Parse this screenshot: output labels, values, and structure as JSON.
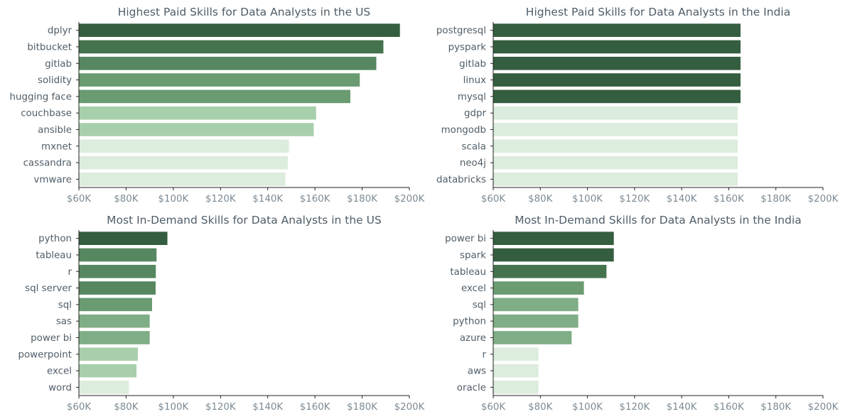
{
  "chart_data": [
    {
      "type": "bar",
      "orientation": "horizontal",
      "title": "Highest Paid Skills for Data Analysts in the US",
      "categories": [
        "dplyr",
        "bitbucket",
        "gitlab",
        "solidity",
        "hugging face",
        "couchbase",
        "ansible",
        "mxnet",
        "cassandra",
        "vmware"
      ],
      "values": [
        196000,
        189000,
        186000,
        179000,
        175000,
        160500,
        159500,
        149000,
        148500,
        147500
      ],
      "xlim": [
        60000,
        200000
      ],
      "xticks": [
        "$60K",
        "$80K",
        "$100K",
        "$120K",
        "$140K",
        "$160K",
        "$180K",
        "$200K"
      ]
    },
    {
      "type": "bar",
      "orientation": "horizontal",
      "title": "Highest Paid Skills for Data Analysts in the India",
      "categories": [
        "postgresql",
        "pyspark",
        "gitlab",
        "linux",
        "mysql",
        "gdpr",
        "mongodb",
        "scala",
        "neo4j",
        "databricks"
      ],
      "values": [
        165000,
        165000,
        165000,
        165000,
        165000,
        163800,
        163800,
        163800,
        163800,
        163800
      ],
      "xlim": [
        60000,
        200000
      ],
      "xticks": [
        "$60K",
        "$80K",
        "$100K",
        "$120K",
        "$140K",
        "$160K",
        "$180K",
        "$200K"
      ]
    },
    {
      "type": "bar",
      "orientation": "horizontal",
      "title": "Most In-Demand Skills for Data Analysts in the US",
      "categories": [
        "python",
        "tableau",
        "r",
        "sql server",
        "sql",
        "sas",
        "power bi",
        "powerpoint",
        "excel",
        "word"
      ],
      "values": [
        97500,
        92900,
        92600,
        92500,
        91000,
        90000,
        90000,
        85000,
        84400,
        81200
      ],
      "xlim": [
        60000,
        200000
      ],
      "xticks": [
        "$60K",
        "$80K",
        "$100K",
        "$120K",
        "$140K",
        "$160K",
        "$180K",
        "$200K"
      ]
    },
    {
      "type": "bar",
      "orientation": "horizontal",
      "title": "Most In-Demand Skills for Data Analysts in the India",
      "categories": [
        "power bi",
        "spark",
        "tableau",
        "excel",
        "sql",
        "python",
        "azure",
        "r",
        "aws",
        "oracle"
      ],
      "values": [
        111200,
        111200,
        108100,
        98500,
        96100,
        96100,
        93300,
        79200,
        79200,
        79200
      ],
      "xlim": [
        60000,
        200000
      ],
      "xticks": [
        "$60K",
        "$80K",
        "$100K",
        "$120K",
        "$140K",
        "$160K",
        "$180K",
        "$200K"
      ]
    }
  ]
}
